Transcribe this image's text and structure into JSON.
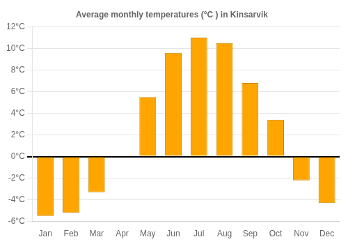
{
  "chart_data": {
    "type": "bar",
    "title": "Average monthly temperatures (°C ) in Kinsarvik",
    "categories": [
      "Jan",
      "Feb",
      "Mar",
      "Apr",
      "May",
      "Jun",
      "Jul",
      "Aug",
      "Sep",
      "Oct",
      "Nov",
      "Dec"
    ],
    "values": [
      -5.5,
      -5.2,
      -3.3,
      0.0,
      5.5,
      9.6,
      11.0,
      10.5,
      6.8,
      3.4,
      -2.2,
      -4.3
    ],
    "color": "#FFA500",
    "ylim": [
      -6,
      12
    ],
    "yticks": [
      {
        "value": -6,
        "label": "-6°C"
      },
      {
        "value": -4,
        "label": "-4°C"
      },
      {
        "value": -2,
        "label": "-2°C"
      },
      {
        "value": 0,
        "label": "0°C"
      },
      {
        "value": 2,
        "label": "2°C"
      },
      {
        "value": 4,
        "label": "4°C"
      },
      {
        "value": 6,
        "label": "6°C"
      },
      {
        "value": 8,
        "label": "8°C"
      },
      {
        "value": 10,
        "label": "10°C"
      },
      {
        "value": 12,
        "label": "12°C"
      }
    ],
    "grid": true
  }
}
